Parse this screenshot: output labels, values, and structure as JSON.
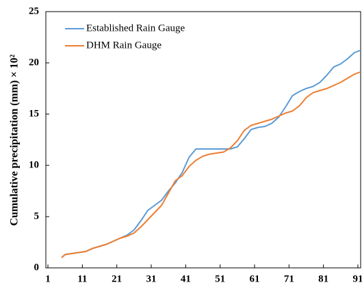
{
  "chart_data": {
    "type": "line",
    "y_label": "Cumulative  precipitation  (mm) × 10²",
    "x": [
      5,
      6,
      8,
      10,
      12,
      14,
      16,
      18,
      20,
      22,
      24,
      26,
      28,
      30,
      32,
      34,
      36,
      38,
      40,
      42,
      44,
      46,
      48,
      50,
      52,
      54,
      56,
      58,
      60,
      62,
      64,
      66,
      68,
      70,
      72,
      74,
      76,
      78,
      80,
      82,
      84,
      86,
      88,
      90,
      91.6
    ],
    "series": [
      {
        "name": "Established Rain Gauge",
        "color": "#5b9bd5",
        "values": [
          1.0,
          1.3,
          1.4,
          1.5,
          1.6,
          1.9,
          2.1,
          2.3,
          2.6,
          2.9,
          3.2,
          3.7,
          4.6,
          5.6,
          6.1,
          6.6,
          7.5,
          8.3,
          9.3,
          10.8,
          11.6,
          11.6,
          11.6,
          11.6,
          11.6,
          11.6,
          11.8,
          12.6,
          13.5,
          13.7,
          13.8,
          14.1,
          14.7,
          15.7,
          16.8,
          17.2,
          17.5,
          17.7,
          18.1,
          18.8,
          19.6,
          19.9,
          20.4,
          21.0,
          21.2
        ]
      },
      {
        "name": "DHM Rain Gauge",
        "color": "#ed7d31",
        "values": [
          1.0,
          1.3,
          1.4,
          1.5,
          1.6,
          1.9,
          2.1,
          2.3,
          2.6,
          2.9,
          3.1,
          3.4,
          4.0,
          4.7,
          5.4,
          6.1,
          7.3,
          8.5,
          9.0,
          9.9,
          10.5,
          10.9,
          11.1,
          11.2,
          11.3,
          11.7,
          12.4,
          13.4,
          13.9,
          14.1,
          14.3,
          14.5,
          14.8,
          15.1,
          15.3,
          15.8,
          16.6,
          17.1,
          17.3,
          17.5,
          17.8,
          18.1,
          18.5,
          18.9,
          19.1
        ]
      }
    ],
    "xlim": [
      0.4,
      91.8
    ],
    "xticks": [
      1,
      11,
      21,
      31,
      41,
      51,
      61,
      71,
      81,
      91
    ],
    "ylim": [
      0,
      25
    ],
    "yticks": [
      0,
      5,
      10,
      15,
      20,
      25
    ],
    "legend": "upper left"
  }
}
